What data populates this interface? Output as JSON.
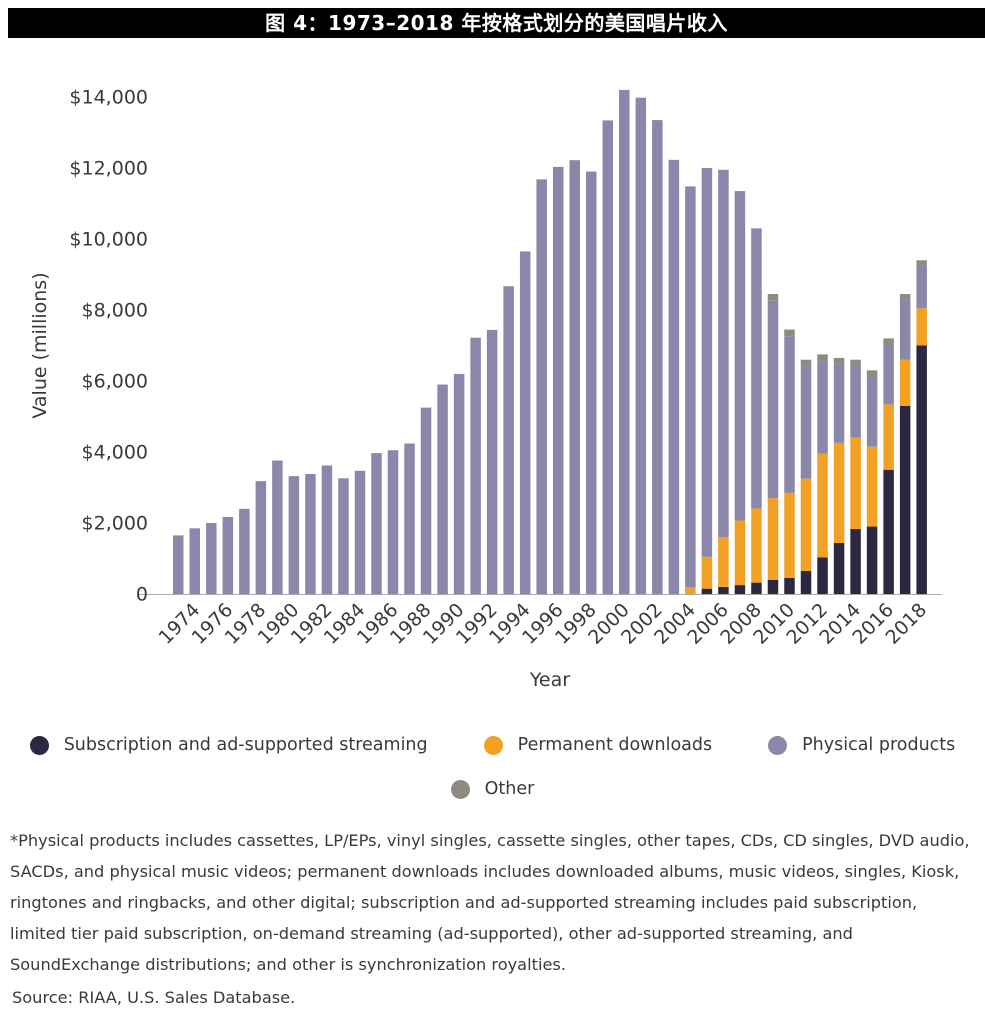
{
  "header": {
    "title": "图 4：1973–2018 年按格式划分的美国唱片收入"
  },
  "chart_data": {
    "type": "bar",
    "stacked": true,
    "title": "图 4：1973–2018 年按格式划分的美国唱片收入",
    "xlabel": "Year",
    "ylabel": "Value (millions)",
    "ylim": [
      0,
      14000
    ],
    "grid": false,
    "legend_position": "bottom",
    "ytick_values": [
      0,
      2000,
      4000,
      6000,
      8000,
      10000,
      12000,
      14000
    ],
    "ytick_labels": [
      "0",
      "$2,000",
      "$4,000",
      "$6,000",
      "$8,000",
      "$10,000",
      "$12,000",
      "$14,000"
    ],
    "categories": [
      1973,
      1974,
      1975,
      1976,
      1977,
      1978,
      1979,
      1980,
      1981,
      1982,
      1983,
      1984,
      1985,
      1986,
      1987,
      1988,
      1989,
      1990,
      1991,
      1992,
      1993,
      1994,
      1995,
      1996,
      1997,
      1998,
      1999,
      2000,
      2001,
      2002,
      2003,
      2004,
      2005,
      2006,
      2007,
      2008,
      2009,
      2010,
      2011,
      2012,
      2013,
      2014,
      2015,
      2016,
      2017,
      2018
    ],
    "xticks": [
      {
        "index": 1,
        "label": "1974"
      },
      {
        "index": 3,
        "label": "1976"
      },
      {
        "index": 5,
        "label": "1978"
      },
      {
        "index": 7,
        "label": "1980"
      },
      {
        "index": 9,
        "label": "1982"
      },
      {
        "index": 11,
        "label": "1984"
      },
      {
        "index": 13,
        "label": "1986"
      },
      {
        "index": 15,
        "label": "1988"
      },
      {
        "index": 17,
        "label": "1990"
      },
      {
        "index": 19,
        "label": "1992"
      },
      {
        "index": 21,
        "label": "1994"
      },
      {
        "index": 23,
        "label": "1996"
      },
      {
        "index": 25,
        "label": "1998"
      },
      {
        "index": 27,
        "label": "2000"
      },
      {
        "index": 29,
        "label": "2002"
      },
      {
        "index": 31,
        "label": "2004"
      },
      {
        "index": 33,
        "label": "2006"
      },
      {
        "index": 35,
        "label": "2008"
      },
      {
        "index": 37,
        "label": "2010"
      },
      {
        "index": 39,
        "label": "2012"
      },
      {
        "index": 41,
        "label": "2014"
      },
      {
        "index": 43,
        "label": "2016"
      },
      {
        "index": 45,
        "label": "2018"
      }
    ],
    "series": [
      {
        "name": "Subscription and ad-supported streaming",
        "color": "#2b2840",
        "values": [
          0,
          0,
          0,
          0,
          0,
          0,
          0,
          0,
          0,
          0,
          0,
          0,
          0,
          0,
          0,
          0,
          0,
          0,
          0,
          0,
          0,
          0,
          0,
          0,
          0,
          0,
          0,
          0,
          0,
          0,
          0,
          0,
          150,
          200,
          250,
          320,
          400,
          450,
          650,
          1030,
          1440,
          1830,
          1900,
          3500,
          5300,
          7000
        ]
      },
      {
        "name": "Permanent downloads",
        "color": "#f2a124",
        "values": [
          0,
          0,
          0,
          0,
          0,
          0,
          0,
          0,
          0,
          0,
          0,
          0,
          0,
          0,
          0,
          0,
          0,
          0,
          0,
          0,
          0,
          0,
          0,
          0,
          0,
          0,
          0,
          0,
          0,
          0,
          0,
          190,
          900,
          1400,
          1820,
          2090,
          2300,
          2400,
          2600,
          2920,
          2820,
          2580,
          2250,
          1840,
          1300,
          1050
        ]
      },
      {
        "name": "Physical products",
        "color": "#8b87ab",
        "values": [
          1650,
          1850,
          2000,
          2170,
          2400,
          3180,
          3760,
          3320,
          3380,
          3620,
          3260,
          3470,
          3970,
          4050,
          4240,
          5250,
          5900,
          6200,
          7220,
          7440,
          8670,
          9650,
          11680,
          12030,
          12220,
          11900,
          13340,
          14200,
          13980,
          13350,
          12230,
          11290,
          10950,
          10350,
          9280,
          7890,
          5560,
          4410,
          3160,
          2610,
          2200,
          2000,
          1950,
          1660,
          1700,
          1200
        ]
      },
      {
        "name": "Other",
        "color": "#8e8b82",
        "values": [
          0,
          0,
          0,
          0,
          0,
          0,
          0,
          0,
          0,
          0,
          0,
          0,
          0,
          0,
          0,
          0,
          0,
          0,
          0,
          0,
          0,
          0,
          0,
          0,
          0,
          0,
          0,
          0,
          0,
          0,
          0,
          0,
          0,
          0,
          0,
          0,
          190,
          190,
          190,
          190,
          190,
          190,
          200,
          200,
          150,
          150
        ]
      }
    ]
  },
  "footnote": {
    "text": "*Physical products includes cassettes, LP/EPs, vinyl singles, cassette singles, other tapes, CDs, CD singles, DVD audio, SACDs, and physical music videos; permanent downloads includes downloaded albums, music videos, singles, Kiosk, ringtones and ringbacks, and other digital; subscription and ad-supported streaming includes paid subscription, limited tier paid subscription, on-demand streaming (ad-supported), other ad-supported streaming, and SoundExchange distributions; and other is synchronization royalties.",
    "source": "Source: RIAA, U.S. Sales Database."
  }
}
